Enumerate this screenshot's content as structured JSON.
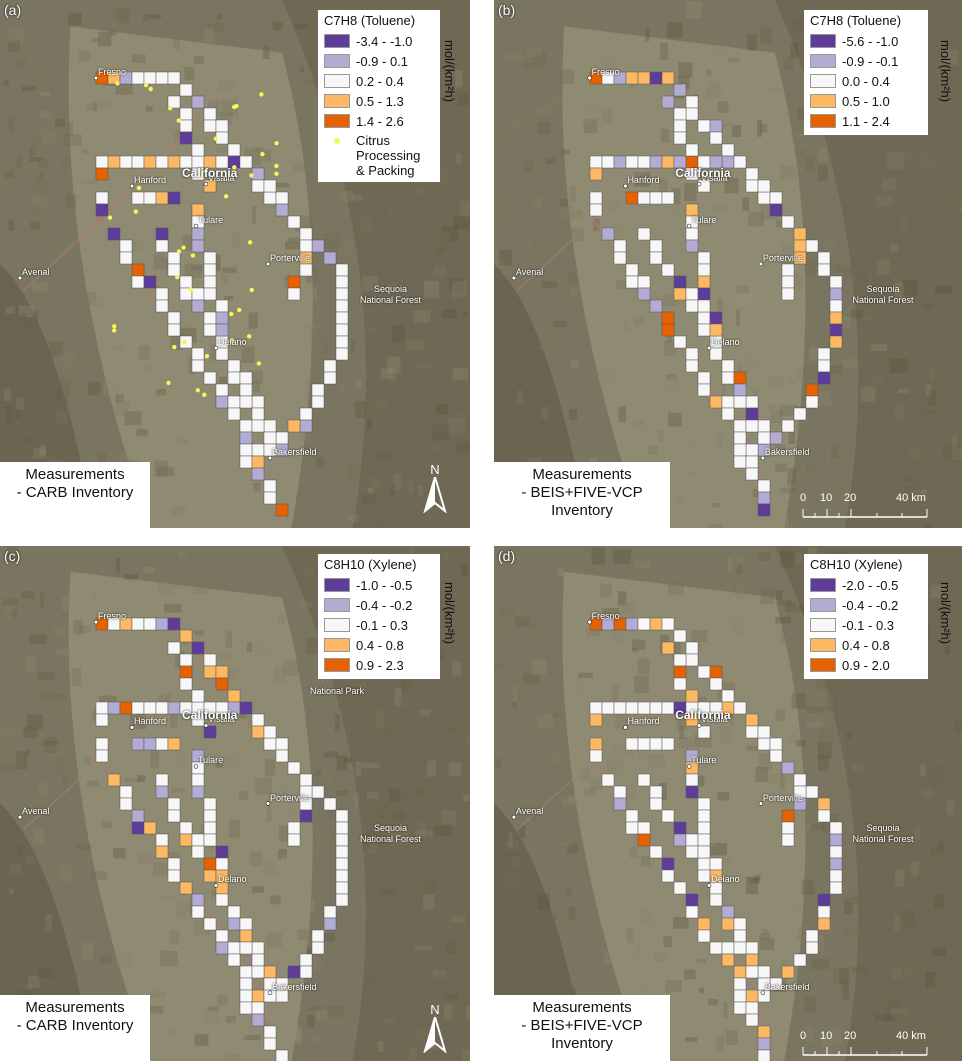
{
  "panels": [
    {
      "label": "(a)",
      "legend_title": "C7H8 (Toluene)",
      "legend_items": [
        "-3.4 - -1.0",
        "-0.9 - 0.1",
        "0.2 - 0.4",
        "0.5 - 1.3",
        "1.4 - 2.6"
      ],
      "extra_legend": "Citrus Processing & Packing",
      "units": "mol/(km²h)",
      "measure_text": [
        "Measurements",
        "- CARB Inventory"
      ],
      "north_label": "N",
      "scale_labels": []
    },
    {
      "label": "(b)",
      "legend_title": "C7H8 (Toluene)",
      "legend_items": [
        "-5.6 - -1.0",
        "-0.9 - -0.1",
        "0.0 - 0.4",
        "0.5 - 1.0",
        "1.1 - 2.4"
      ],
      "extra_legend": "",
      "units": "mol/(km²h)",
      "measure_text": [
        "Measurements",
        "- BEIS+FIVE-VCP",
        "Inventory"
      ],
      "north_label": "",
      "scale_labels": [
        "0",
        "10",
        "20",
        "40 km"
      ]
    },
    {
      "label": "(c)",
      "legend_title": "C8H10 (Xylene)",
      "legend_items": [
        "-1.0 - -0.5",
        "-0.4 - -0.2",
        "-0.1 - 0.3",
        "0.4 - 0.8",
        "0.9 - 2.3"
      ],
      "extra_legend": "",
      "units": "mol/(km²h)",
      "measure_text": [
        "Measurements",
        "- CARB Inventory"
      ],
      "north_label": "N",
      "scale_labels": []
    },
    {
      "label": "(d)",
      "legend_title": "C8H10 (Xylene)",
      "legend_items": [
        "-2.0 - -0.5",
        "-0.4 - -0.2",
        "-0.1 - 0.3",
        "0.4 - 0.8",
        "0.9 - 2.0"
      ],
      "extra_legend": "",
      "units": "mol/(km²h)",
      "measure_text": [
        "Measurements",
        "- BEIS+FIVE-VCP",
        "Inventory"
      ],
      "north_label": "",
      "scale_labels": [
        "0",
        "10",
        "20",
        "40 km"
      ]
    }
  ],
  "places": {
    "fresno": "Fresno",
    "california": "California",
    "visalia": "Visalia",
    "hanford": "Hanford",
    "tulare": "Tulare",
    "porterville": "Porterville",
    "avenal": "Avenal",
    "sequoia": "Sequoia",
    "national_forest": "National Forest",
    "delano": "Delano",
    "bakersfield": "Bakersfield",
    "national_park": "National Park"
  },
  "colors": {
    "class1": "#5e3c99",
    "class2": "#b2abd2",
    "class3": "#f7f7f7",
    "class4": "#fdb863",
    "class5": "#e66101",
    "citrus": "#f6f65a"
  }
}
